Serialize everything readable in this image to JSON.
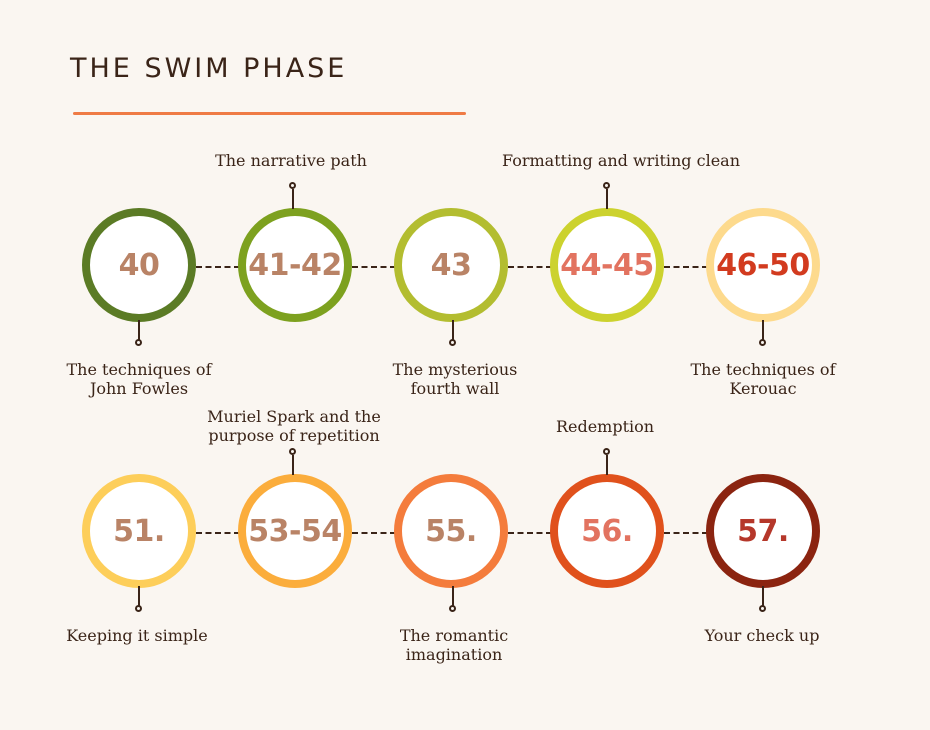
{
  "title": "THE SWIM PHASE",
  "colors": {
    "accent": "#ef7b45",
    "text": "#3a2418",
    "background": "#faf6f1"
  },
  "row1": [
    {
      "number": "40",
      "label": "The techniques of\nJohn Fowles",
      "label_position": "below",
      "ring": "#5b7b25",
      "text": "#b98366"
    },
    {
      "number": "41-42",
      "label": "The narrative path",
      "label_position": "above",
      "ring": "#7da11f",
      "text": "#b98366"
    },
    {
      "number": "43",
      "label": "The mysterious\nfourth wall",
      "label_position": "below",
      "ring": "#b3bd30",
      "text": "#b98366"
    },
    {
      "number": "44-45",
      "label": "Formatting and writing clean",
      "label_position": "above",
      "ring": "#ccd22e",
      "text": "#e27360"
    },
    {
      "number": "46-50",
      "label": "The techniques of\nKerouac",
      "label_position": "below",
      "ring": "#fdda8d",
      "text": "#d23b1f"
    }
  ],
  "row2": [
    {
      "number": "51.",
      "label": "Keeping it simple",
      "label_position": "below",
      "ring": "#fdce5a",
      "text": "#b98366"
    },
    {
      "number": "53-54",
      "label": "Muriel Spark and the\npurpose of repetition",
      "label_position": "above",
      "ring": "#fbad3c",
      "text": "#b98366"
    },
    {
      "number": "55.",
      "label": "The romantic\nimagination",
      "label_position": "below",
      "ring": "#f47c3c",
      "text": "#b98366"
    },
    {
      "number": "56.",
      "label": "Redemption",
      "label_position": "above",
      "ring": "#e0511c",
      "text": "#e27360"
    },
    {
      "number": "57.",
      "label": "Your check up",
      "label_position": "below",
      "ring": "#8b2410",
      "text": "#b5372a"
    }
  ]
}
